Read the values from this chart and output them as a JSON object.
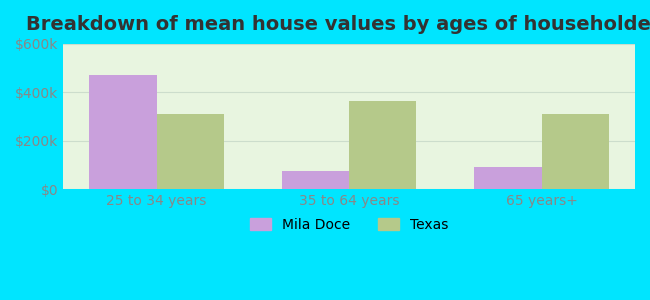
{
  "title": "Breakdown of mean house values by ages of householders",
  "categories": [
    "25 to 34 years",
    "35 to 64 years",
    "65 years+"
  ],
  "mila_doce_values": [
    470000,
    75000,
    90000
  ],
  "texas_values": [
    310000,
    365000,
    310000
  ],
  "mila_doce_color": "#c9a0dc",
  "texas_color": "#b5c98a",
  "ylim": [
    0,
    600000
  ],
  "yticks": [
    0,
    200000,
    400000,
    600000
  ],
  "ytick_labels": [
    "$0",
    "$200k",
    "$400k",
    "$600k"
  ],
  "legend_labels": [
    "Mila Doce",
    "Texas"
  ],
  "background_outer": "#00e5ff",
  "background_inner": "#e8f5e0",
  "bar_width": 0.35,
  "title_fontsize": 14,
  "tick_fontsize": 10
}
